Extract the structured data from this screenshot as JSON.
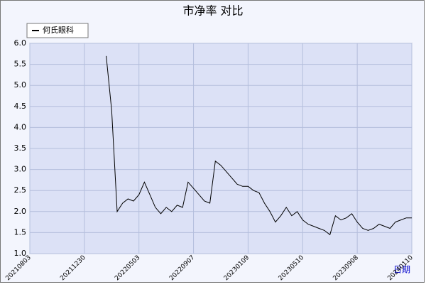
{
  "chart_data": {
    "type": "line",
    "title": "市净率  对比",
    "x_label": "日期",
    "categories": [
      "20210803",
      null,
      null,
      null,
      null,
      null,
      null,
      null,
      null,
      null,
      "20211230",
      null,
      null,
      null,
      null,
      null,
      null,
      null,
      null,
      null,
      "20220503",
      null,
      null,
      null,
      null,
      null,
      null,
      null,
      null,
      null,
      "20220907",
      null,
      null,
      null,
      null,
      null,
      null,
      null,
      null,
      null,
      "20230109",
      null,
      null,
      null,
      null,
      null,
      null,
      null,
      null,
      null,
      "20230510",
      null,
      null,
      null,
      null,
      null,
      null,
      null,
      null,
      null,
      "20230908",
      null,
      null,
      null,
      null,
      null,
      null,
      null,
      null,
      null,
      "20240110"
    ],
    "series": [
      {
        "name": "何氏眼科",
        "color": "#000000",
        "values": [
          null,
          null,
          null,
          null,
          null,
          null,
          null,
          null,
          null,
          null,
          null,
          null,
          null,
          null,
          5.7,
          4.4,
          2.0,
          2.2,
          2.3,
          2.25,
          2.4,
          2.7,
          2.4,
          2.1,
          1.95,
          2.1,
          2.0,
          2.15,
          2.1,
          2.7,
          2.55,
          2.4,
          2.25,
          2.2,
          3.2,
          3.1,
          2.95,
          2.8,
          2.65,
          2.6,
          2.6,
          2.5,
          2.45,
          2.2,
          2.0,
          1.75,
          1.9,
          2.1,
          1.9,
          2.0,
          1.8,
          1.7,
          1.65,
          1.6,
          1.55,
          1.45,
          1.9,
          1.8,
          1.85,
          1.95,
          1.75,
          1.6,
          1.55,
          1.6,
          1.7,
          1.65,
          1.6,
          1.75,
          1.8,
          1.85,
          1.85
        ]
      }
    ],
    "ylim": [
      1,
      6
    ],
    "yticks": [
      {
        "value": 1,
        "label": "1.0"
      },
      {
        "value": 1.5,
        "label": "1.5"
      },
      {
        "value": 2,
        "label": "2.0"
      },
      {
        "value": 2.5,
        "label": "2.5"
      },
      {
        "value": 3,
        "label": "3.0"
      },
      {
        "value": 3.5,
        "label": "3.5"
      },
      {
        "value": 4,
        "label": "4.0"
      },
      {
        "value": 4.5,
        "label": "4.5"
      },
      {
        "value": 5,
        "label": "5.0"
      },
      {
        "value": 5.5,
        "label": "5.5"
      },
      {
        "value": 6,
        "label": "6.0"
      }
    ],
    "grid": true
  }
}
